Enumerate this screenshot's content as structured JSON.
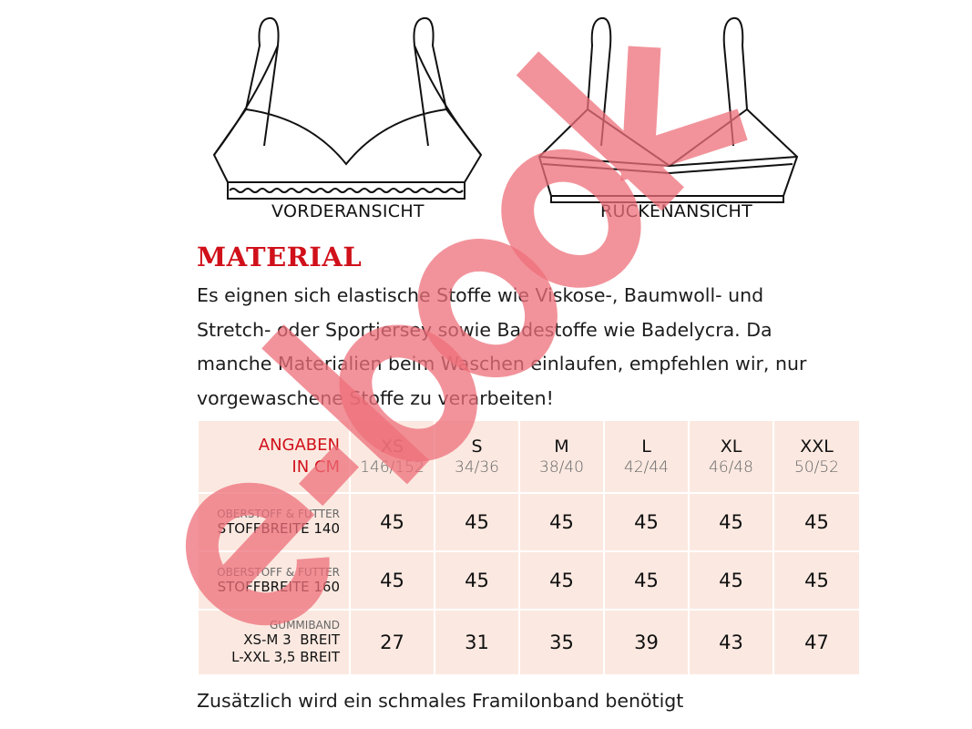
{
  "illustrations": {
    "front_caption": "VORDERANSICHT",
    "back_caption": "RÜCKENANSICHT"
  },
  "material": {
    "heading": "MATERIAL",
    "lines": [
      "Es eignen sich elastische Stoffe wie Viskose-, Baumwoll- und",
      "Stretch- oder Sportjersey sowie Badestoffe wie Badelycra. Da",
      "manche Materialien beim Waschen einlaufen, empfehlen wir, nur",
      "vorgewaschene Stoffe zu verarbeiten!"
    ]
  },
  "table": {
    "header_label": [
      "ANGABEN",
      "IN CM"
    ],
    "sizes": [
      {
        "size": "XS",
        "eu": "146/152"
      },
      {
        "size": "S",
        "eu": "34/36"
      },
      {
        "size": "M",
        "eu": "38/40"
      },
      {
        "size": "L",
        "eu": "42/44"
      },
      {
        "size": "XL",
        "eu": "46/48"
      },
      {
        "size": "XXL",
        "eu": "50/52"
      }
    ],
    "rows": [
      {
        "small": "OBERSTOFF & FUTTER",
        "main": [
          "STOFFBREITE 140"
        ],
        "values": [
          "45",
          "45",
          "45",
          "45",
          "45",
          "45"
        ]
      },
      {
        "small": "OBERSTOFF & FUTTER",
        "main": [
          "STOFFBREITE 160"
        ],
        "values": [
          "45",
          "45",
          "45",
          "45",
          "45",
          "45"
        ]
      },
      {
        "small": "GUMMIBAND",
        "main": [
          "XS-M 3  BREIT",
          "L-XXL 3,5 BREIT"
        ],
        "values": [
          "27",
          "31",
          "35",
          "39",
          "43",
          "47"
        ]
      }
    ]
  },
  "footer": "Zusätzlich wird ein schmales Framilonband benötigt",
  "watermark": "e-book",
  "colors": {
    "accent": "#d0101a",
    "table_bg": "#fbe9e1",
    "watermark": "#ee6f7a"
  }
}
